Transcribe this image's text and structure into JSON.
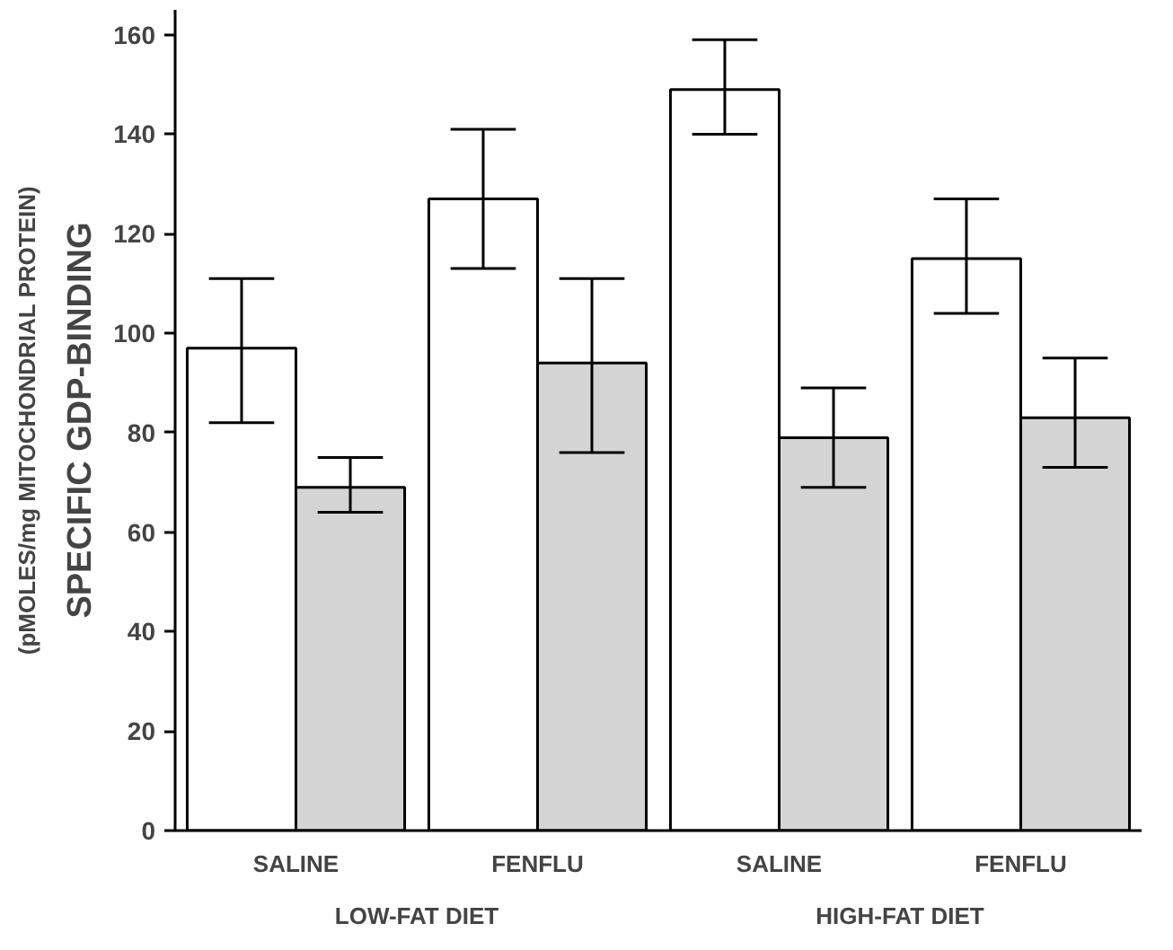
{
  "chart_data": {
    "type": "bar",
    "ylabel": "SPECIFIC GDP-BINDING\n(pMOLES/mg MITOCHONDRIAL PROTEIN)",
    "categories": [
      "SALINE",
      "FENFLU",
      "SALINE",
      "FENFLU"
    ],
    "annotations": [
      "LOW-FAT DIET",
      "HIGH-FAT DIET"
    ],
    "series": [
      {
        "color": "#ffffff",
        "values": [
          97,
          127,
          149,
          115
        ],
        "errors": [
          [
            82,
            111
          ],
          [
            113,
            141
          ],
          [
            140,
            159
          ],
          [
            104,
            127
          ]
        ]
      },
      {
        "color": "#d4d4d4",
        "values": [
          69,
          94,
          79,
          83
        ],
        "errors": [
          [
            64,
            75
          ],
          [
            76,
            111
          ],
          [
            69,
            89
          ],
          [
            73,
            95
          ]
        ]
      }
    ],
    "ylim": [
      0,
      165
    ],
    "yticks": [
      0,
      20,
      40,
      60,
      80,
      100,
      120,
      140,
      160
    ],
    "grid": false
  }
}
